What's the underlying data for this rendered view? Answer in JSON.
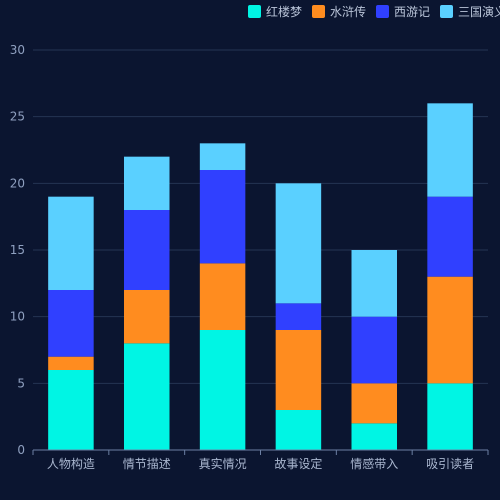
{
  "chart_data": {
    "type": "bar",
    "stacked": true,
    "title": "",
    "xlabel": "",
    "ylabel": "",
    "ylim": [
      0,
      30
    ],
    "yticks": [
      0,
      5,
      10,
      15,
      20,
      25,
      30
    ],
    "grid": true,
    "legend_position": "top-right",
    "categories": [
      "人物构造",
      "情节描述",
      "真实情况",
      "故事设定",
      "情感带入",
      "吸引读者"
    ],
    "series": [
      {
        "name": "红楼梦",
        "color": "#00f5e4",
        "values": [
          6,
          8,
          9,
          3,
          2,
          5
        ]
      },
      {
        "name": "水浒传",
        "color": "#ff8c1f",
        "values": [
          1,
          4,
          5,
          6,
          3,
          8
        ]
      },
      {
        "name": "西游记",
        "color": "#3040ff",
        "values": [
          5,
          6,
          7,
          2,
          5,
          6
        ]
      },
      {
        "name": "三国演义",
        "color": "#5ad0ff",
        "values": [
          7,
          4,
          2,
          9,
          5,
          7
        ]
      }
    ]
  },
  "colors": {
    "background": "#0b1530",
    "grid": "#253553",
    "axis": "#6c7fa3"
  }
}
